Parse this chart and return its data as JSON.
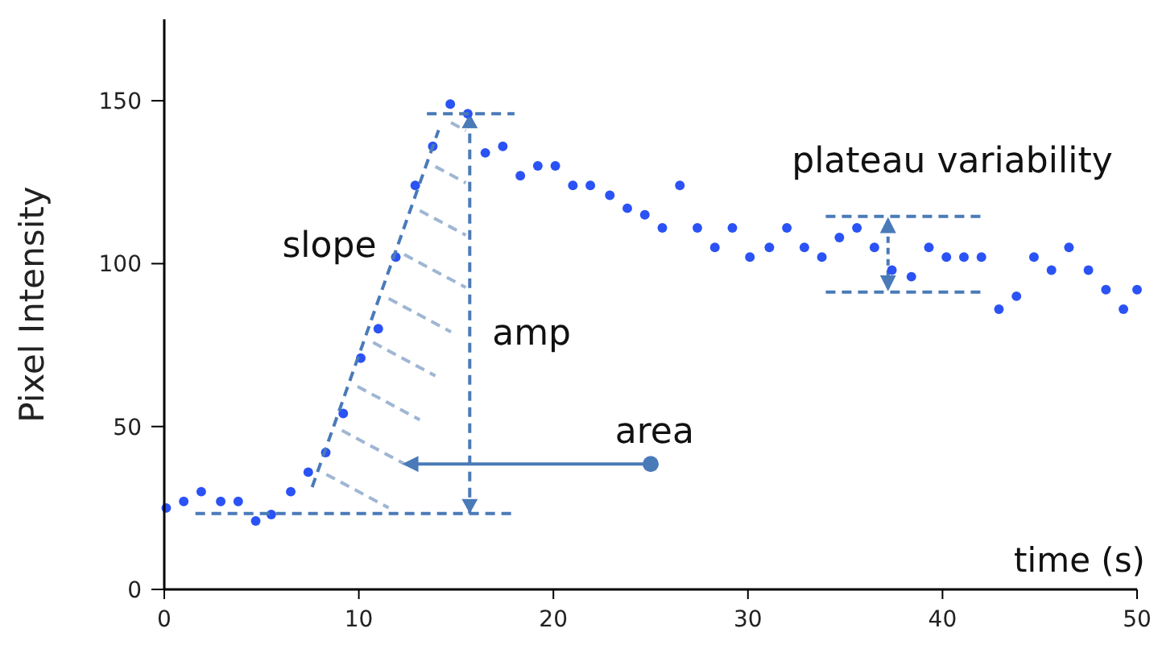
{
  "chart_data": {
    "type": "scatter",
    "xlabel": "time (s)",
    "ylabel": "Pixel Intensity",
    "xlim": [
      0,
      50
    ],
    "xticks": [
      0,
      10,
      20,
      30,
      40,
      50
    ],
    "ylim": [
      0,
      175
    ],
    "yticks": [
      0,
      50,
      100,
      150
    ],
    "grid": false,
    "series": [
      {
        "color": "#2a52f5",
        "marker": "circle",
        "x": [
          0.1,
          1,
          1.9,
          2.9,
          3.8,
          4.7,
          5.5,
          6.5,
          7.4,
          8.3,
          9.2,
          10.1,
          11,
          11.9,
          12.9,
          13.8,
          14.7,
          15.6,
          16.5,
          17.4,
          18.3,
          19.2,
          20.1,
          21,
          21.9,
          22.9,
          23.8,
          24.7,
          25.6,
          26.5,
          27.4,
          28.3,
          29.2,
          30.1,
          31.1,
          32,
          32.9,
          33.8,
          34.7,
          35.6,
          36.5,
          37.4,
          38.4,
          39.3,
          40.2,
          41.1,
          42,
          42.9,
          43.8,
          44.7,
          45.6,
          46.5,
          47.5,
          48.4,
          49.3,
          50
        ],
        "values": [
          25,
          27,
          30,
          27,
          27,
          21,
          23,
          30,
          36,
          42,
          54,
          71,
          80,
          102,
          124,
          136,
          149,
          146,
          134,
          136,
          127,
          130,
          130,
          124,
          124,
          121,
          117,
          115,
          111,
          124,
          111,
          105,
          111,
          102,
          105,
          111,
          105,
          102,
          108,
          111,
          105,
          98,
          96,
          105,
          102,
          102,
          102,
          86,
          90,
          102,
          98,
          105,
          98,
          92,
          86,
          92
        ]
      },
      {
        "type": "line",
        "color": "#4a7ab8",
        "line_style": "dashed",
        "marker": "none",
        "x": [
          7.6,
          14.1
        ],
        "values": [
          31.4,
          141
        ]
      },
      {
        "type": "line",
        "color": "#4a7ab8",
        "line_style": "dashed",
        "marker": "none",
        "x": [
          1.6,
          18
        ],
        "values": [
          23.3,
          23.3
        ]
      },
      {
        "type": "line",
        "color": "#4a7ab8",
        "line_style": "dashed",
        "marker": "none",
        "x": [
          13.5,
          18
        ],
        "values": [
          146,
          146
        ]
      },
      {
        "type": "line",
        "color": "#4a7ab8",
        "line_style": "dashed",
        "marker": "none",
        "x": [
          34,
          42
        ],
        "values": [
          114.5,
          114.5
        ]
      },
      {
        "type": "line",
        "color": "#4a7ab8",
        "line_style": "dashed",
        "marker": "none",
        "x": [
          34,
          42
        ],
        "values": [
          91.3,
          91.3
        ]
      },
      {
        "type": "line",
        "color": "#4a7ab8",
        "line_style": "dashed",
        "marker": "none",
        "x": [
          15.7,
          15.7
        ],
        "values": [
          23.3,
          146
        ]
      }
    ],
    "annotations": [
      {
        "text": "slope",
        "x": 11.9,
        "y": 104
      },
      {
        "text": "amp",
        "x": 15.7,
        "y": 84.6
      },
      "area",
      "plateau variability"
    ]
  }
}
